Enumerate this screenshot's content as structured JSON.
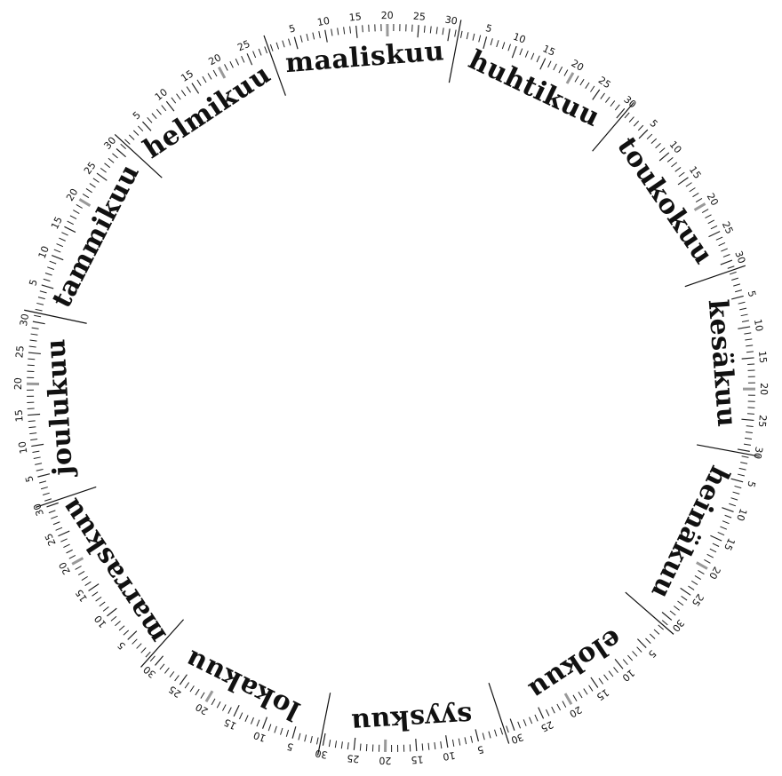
{
  "calendar": {
    "months": [
      {
        "name": "tammikuu",
        "days": 31
      },
      {
        "name": "helmikuu",
        "days": 28
      },
      {
        "name": "maaliskuu",
        "days": 31
      },
      {
        "name": "huhtikuu",
        "days": 30
      },
      {
        "name": "toukokuu",
        "days": 31
      },
      {
        "name": "kesäkuu",
        "days": 30
      },
      {
        "name": "heinäkuu",
        "days": 31
      },
      {
        "name": "elokuu",
        "days": 31
      },
      {
        "name": "syyskuu",
        "days": 30
      },
      {
        "name": "lokakuu",
        "days": 31
      },
      {
        "name": "marraskuu",
        "days": 30
      },
      {
        "name": "joulukuu",
        "days": 31
      }
    ],
    "day_labels": [
      "5",
      "10",
      "15",
      "20",
      "25",
      "30"
    ],
    "highlighted_day": 20,
    "direction": "clockwise",
    "start_month": "tammikuu",
    "start_position": "top",
    "colors": {
      "ink": "#111111",
      "highlight": "#999999",
      "background": "#ffffff"
    }
  }
}
